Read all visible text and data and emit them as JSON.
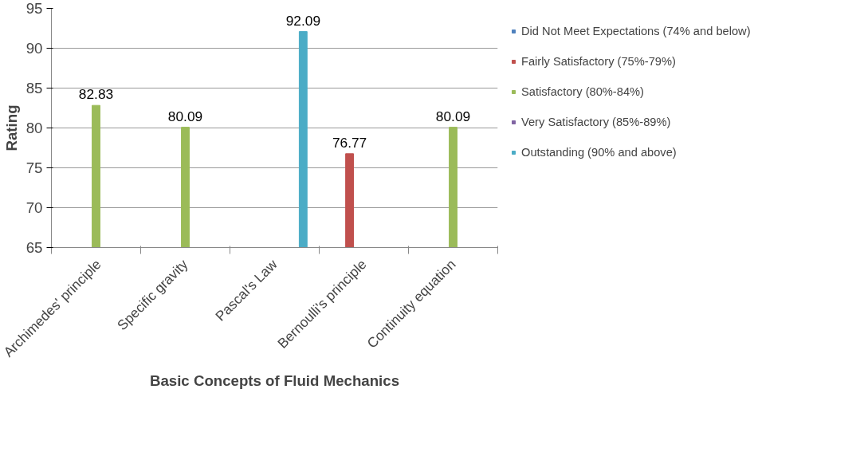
{
  "chart_data": {
    "type": "bar",
    "xlabel": "Basic Concepts of Fluid Mechanics",
    "ylabel": "Rating",
    "categories": [
      "Archimedes' principle",
      "Specific gravity",
      "Pascal's Law",
      "Bernoulli's principle",
      "Continuity equation"
    ],
    "series": [
      {
        "name": "Did Not Meet Expectations (74% and below)",
        "color": "#4f81bd",
        "values": [
          null,
          null,
          null,
          null,
          null
        ]
      },
      {
        "name": "Fairly Satisfactory (75%-79%)",
        "color": "#c0504d",
        "values": [
          null,
          null,
          null,
          76.77,
          null
        ]
      },
      {
        "name": "Satisfactory (80%-84%)",
        "color": "#9bbb59",
        "values": [
          82.83,
          80.09,
          null,
          null,
          80.09
        ]
      },
      {
        "name": "Very Satisfactory (85%-89%)",
        "color": "#8064a2",
        "values": [
          null,
          null,
          null,
          null,
          null
        ]
      },
      {
        "name": "Outstanding (90% and above)",
        "color": "#4bacc6",
        "values": [
          null,
          null,
          92.09,
          null,
          null
        ]
      }
    ],
    "ylim": [
      65,
      95
    ],
    "yticks": [
      65,
      70,
      75,
      80,
      85,
      90,
      95
    ],
    "grid": "y",
    "legend": "right",
    "data_labels": true
  }
}
